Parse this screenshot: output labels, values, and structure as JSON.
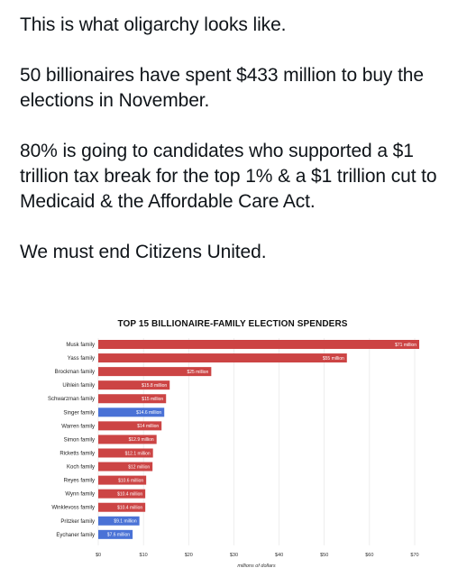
{
  "post": {
    "paragraphs": [
      "This is what oligarchy looks like.",
      "50 billionaires have spent $433 million to buy the elections in November.",
      "80% is going to candidates who supported a $1 trillion tax break for the top 1% & a $1 trillion cut to Medicaid & the Affordable Care Act.",
      "We must end Citizens United."
    ]
  },
  "colors": {
    "republican": "#cc4444",
    "democrat": "#4a72d6"
  },
  "chart_data": {
    "type": "bar",
    "orientation": "horizontal",
    "title": "TOP 15 BILLIONAIRE-FAMILY ELECTION SPENDERS",
    "xlabel": "millions of dollars",
    "ylabel": "",
    "xlim": [
      0,
      70
    ],
    "xticks": [
      "$0",
      "$10",
      "$20",
      "$30",
      "$40",
      "$50",
      "$60",
      "$70"
    ],
    "categories": [
      "Musk family",
      "Yass family",
      "Brockman family",
      "Uihlein family",
      "Schwarzman family",
      "Singer family",
      "Warren family",
      "Simon family",
      "Ricketts family",
      "Koch family",
      "Reyes family",
      "Wynn family",
      "Winklevoss family",
      "Pritzker family",
      "Eychaner family"
    ],
    "values": [
      71,
      55,
      25,
      15.8,
      15,
      14.6,
      14,
      12.9,
      12.1,
      12,
      10.6,
      10.4,
      10.4,
      9.1,
      7.6
    ],
    "data_labels": [
      "$71 million",
      "$55 million",
      "$25 million",
      "$15.8 million",
      "$15 million",
      "$14.6 million",
      "$14 million",
      "$12.9 million",
      "$12.1 million",
      "$12 million",
      "$10.6 million",
      "$10.4 million",
      "$10.4 million",
      "$9.1 million",
      "$7.6 million"
    ],
    "bar_colors": [
      "#cc4444",
      "#cc4444",
      "#cc4444",
      "#cc4444",
      "#cc4444",
      "#4a72d6",
      "#cc4444",
      "#cc4444",
      "#cc4444",
      "#cc4444",
      "#cc4444",
      "#cc4444",
      "#cc4444",
      "#4a72d6",
      "#4a72d6"
    ],
    "grid": true,
    "legend": "none"
  }
}
